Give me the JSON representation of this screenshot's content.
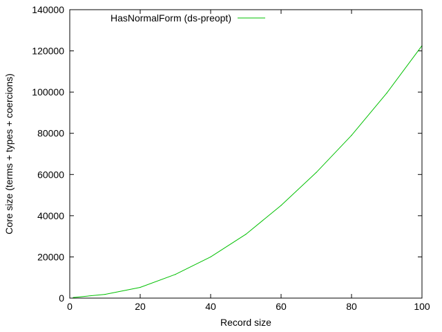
{
  "chart_data": {
    "type": "line",
    "title": "",
    "xlabel": "Record size",
    "ylabel": "Core size (terms + types + coercions)",
    "xlim": [
      0,
      100
    ],
    "ylim": [
      0,
      140000
    ],
    "xticks": [
      0,
      20,
      40,
      60,
      80,
      100
    ],
    "yticks": [
      0,
      20000,
      40000,
      60000,
      80000,
      100000,
      120000,
      140000
    ],
    "grid": false,
    "legend_position": "top-left",
    "series": [
      {
        "name": "HasNormalForm (ds-preopt)",
        "color": "#00c000",
        "x": [
          1,
          10,
          20,
          30,
          40,
          50,
          60,
          70,
          80,
          90,
          100
        ],
        "y": [
          300,
          1800,
          5200,
          11500,
          20000,
          31000,
          45000,
          61000,
          79000,
          99500,
          122500
        ]
      }
    ]
  }
}
